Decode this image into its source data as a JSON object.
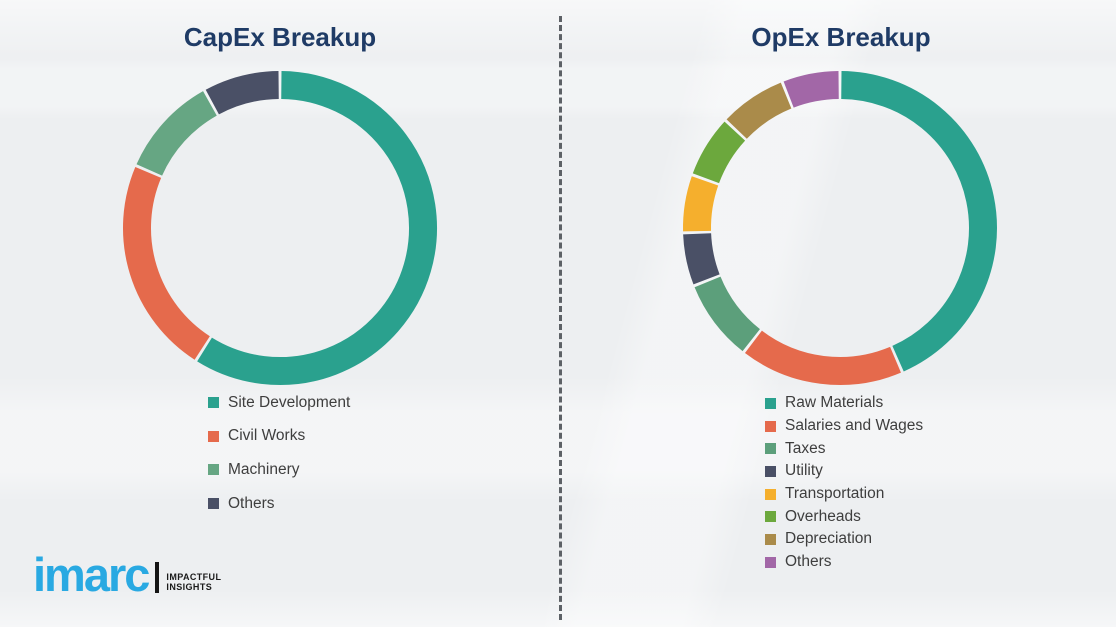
{
  "page": {
    "background_color": "#edeff1",
    "divider_color": "#5d6166"
  },
  "chart_data": [
    {
      "type": "pie",
      "subtype": "donut",
      "title": "CapEx Breakup",
      "title_color": "#1f3b66",
      "legend_position": "bottom",
      "units": "percent",
      "segments": [
        {
          "label": "Site Development",
          "value": 59,
          "color": "#2aa18e"
        },
        {
          "label": "Civil Works",
          "value": 22.5,
          "color": "#e56a4c"
        },
        {
          "label": "Machinery",
          "value": 10.5,
          "color": "#66a683"
        },
        {
          "label": "Others",
          "value": 8,
          "color": "#4a5066"
        }
      ]
    },
    {
      "type": "pie",
      "subtype": "donut",
      "title": "OpEx Breakup",
      "title_color": "#1f3b66",
      "legend_position": "bottom",
      "units": "percent",
      "segments": [
        {
          "label": "Raw Materials",
          "value": 43.5,
          "color": "#2aa18e"
        },
        {
          "label": "Salaries and Wages",
          "value": 17,
          "color": "#e56a4c"
        },
        {
          "label": "Taxes",
          "value": 8.5,
          "color": "#5c9f7b"
        },
        {
          "label": "Utility",
          "value": 5.5,
          "color": "#4a5066"
        },
        {
          "label": "Transportation",
          "value": 6,
          "color": "#f5af2d"
        },
        {
          "label": "Overheads",
          "value": 6.5,
          "color": "#6ca83d"
        },
        {
          "label": "Depreciation",
          "value": 7,
          "color": "#aa8b4a"
        },
        {
          "label": "Others",
          "value": 6,
          "color": "#a267a7"
        }
      ]
    }
  ],
  "logo": {
    "brand": "imarc",
    "brand_color": "#29a9e2",
    "tagline_line1": "IMPACTFUL",
    "tagline_line2": "INSIGHTS"
  }
}
